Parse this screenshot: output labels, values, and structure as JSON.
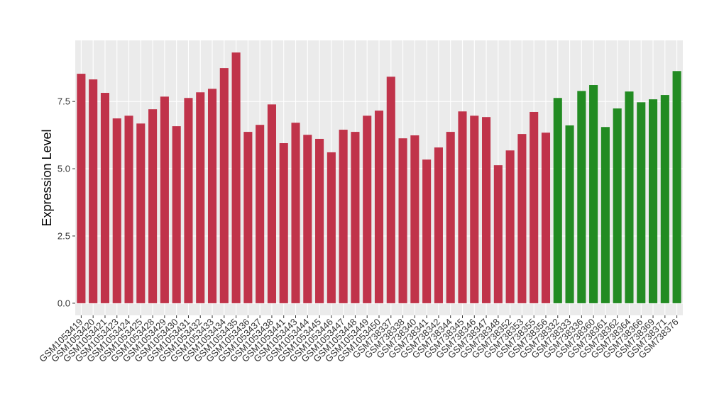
{
  "chart_data": {
    "type": "bar",
    "ylabel": "Expression Level",
    "categories": [
      "GSM1053419",
      "GSM1053420",
      "GSM1053421",
      "GSM1053423",
      "GSM1053424",
      "GSM1053425",
      "GSM1053428",
      "GSM1053429",
      "GSM1053430",
      "GSM1053431",
      "GSM1053432",
      "GSM1053433",
      "GSM1053434",
      "GSM1053435",
      "GSM1053436",
      "GSM1053437",
      "GSM1053438",
      "GSM1053441",
      "GSM1053443",
      "GSM1053444",
      "GSM1053445",
      "GSM1053446",
      "GSM1053447",
      "GSM1053448",
      "GSM1053449",
      "GSM1053450",
      "GSM738337",
      "GSM738338",
      "GSM738340",
      "GSM738341",
      "GSM738342",
      "GSM738344",
      "GSM738345",
      "GSM738346",
      "GSM738347",
      "GSM738348",
      "GSM738352",
      "GSM738353",
      "GSM738355",
      "GSM738356",
      "GSM738332",
      "GSM738333",
      "GSM738336",
      "GSM738360",
      "GSM738361",
      "GSM738362",
      "GSM738364",
      "GSM738366",
      "GSM738369",
      "GSM738371",
      "GSM738376"
    ],
    "values": [
      8.53,
      8.32,
      7.82,
      6.87,
      6.97,
      6.68,
      7.21,
      7.68,
      6.58,
      7.63,
      7.84,
      7.97,
      8.74,
      9.32,
      6.37,
      6.63,
      7.39,
      5.95,
      6.71,
      6.26,
      6.11,
      5.61,
      6.45,
      6.37,
      6.97,
      7.16,
      8.42,
      6.13,
      6.24,
      5.34,
      5.79,
      6.37,
      7.13,
      6.97,
      6.92,
      5.13,
      5.68,
      6.29,
      7.11,
      6.34,
      7.63,
      6.61,
      7.89,
      8.11,
      6.55,
      7.24,
      7.87,
      7.47,
      7.58,
      7.74,
      8.63
    ],
    "colors": [
      "#c0334a",
      "#c0334a",
      "#c0334a",
      "#c0334a",
      "#c0334a",
      "#c0334a",
      "#c0334a",
      "#c0334a",
      "#c0334a",
      "#c0334a",
      "#c0334a",
      "#c0334a",
      "#c0334a",
      "#c0334a",
      "#c0334a",
      "#c0334a",
      "#c0334a",
      "#c0334a",
      "#c0334a",
      "#c0334a",
      "#c0334a",
      "#c0334a",
      "#c0334a",
      "#c0334a",
      "#c0334a",
      "#c0334a",
      "#c0334a",
      "#c0334a",
      "#c0334a",
      "#c0334a",
      "#c0334a",
      "#c0334a",
      "#c0334a",
      "#c0334a",
      "#c0334a",
      "#c0334a",
      "#c0334a",
      "#c0334a",
      "#c0334a",
      "#c0334a",
      "#228b22",
      "#228b22",
      "#228b22",
      "#228b22",
      "#228b22",
      "#228b22",
      "#228b22",
      "#228b22",
      "#228b22",
      "#228b22",
      "#228b22"
    ],
    "ylim": [
      -0.45,
      9.77
    ],
    "yticks": [
      {
        "value": 0,
        "label": "0.0"
      },
      {
        "value": 2.5,
        "label": "2.5"
      },
      {
        "value": 5,
        "label": "5.0"
      },
      {
        "value": 7.5,
        "label": "7.5"
      }
    ],
    "grid": true
  }
}
